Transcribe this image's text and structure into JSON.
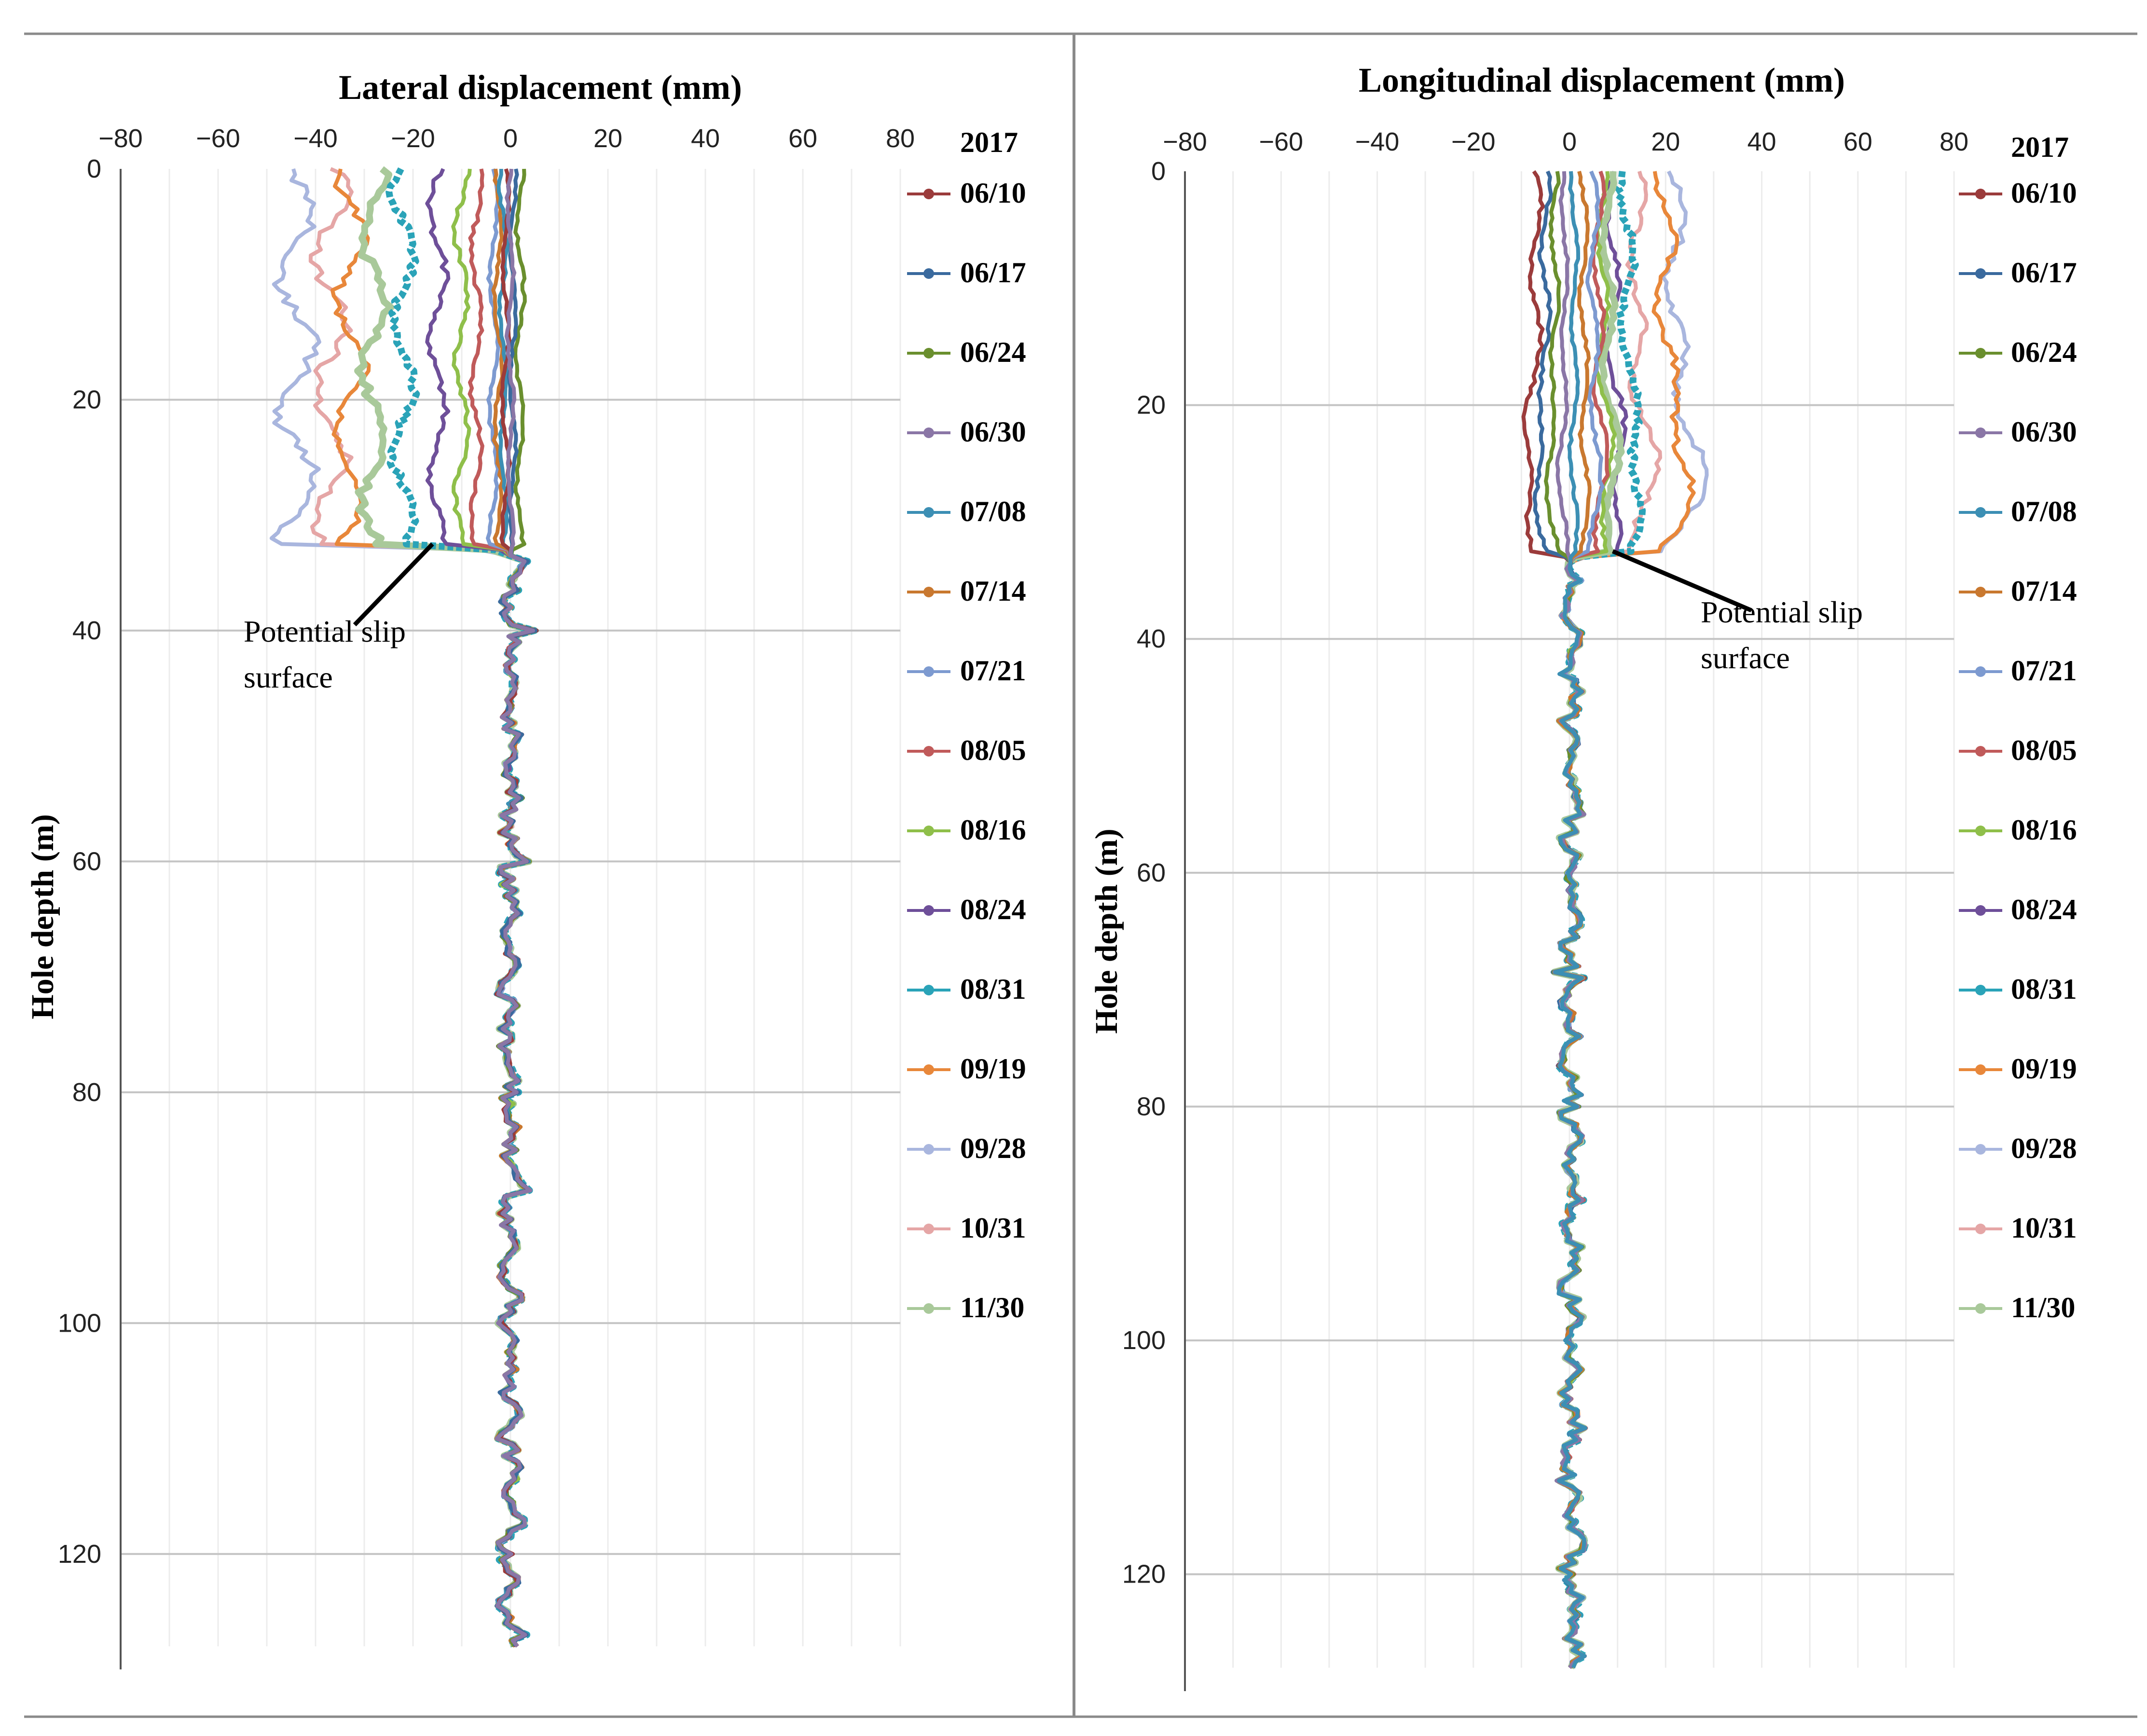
{
  "chart_data": [
    {
      "type": "line",
      "title": "Lateral displacement (mm)",
      "xlabel": "Lateral displacement (mm)",
      "ylabel": "Hole depth (m)",
      "xlim": [
        -80,
        80
      ],
      "ylim": [
        130,
        0
      ],
      "y_inverted": true,
      "x_ticks": [
        -80,
        -60,
        -40,
        -20,
        0,
        20,
        40,
        60,
        80
      ],
      "y_ticks": [
        0,
        20,
        40,
        60,
        80,
        100,
        120
      ],
      "grid": true,
      "legend_position": "right",
      "legend_title": "2017",
      "annotation": {
        "text_line1": "Potential slip",
        "text_line2": "surface",
        "depth_m": 32.5,
        "disp_mm": -16
      },
      "series": [
        {
          "name": "06/10",
          "color": "#9b3b3b",
          "top_disp": -1.0
        },
        {
          "name": "06/17",
          "color": "#3a6a9e",
          "top_disp": 0.5
        },
        {
          "name": "06/24",
          "color": "#6a8f2e",
          "top_disp": 2.0
        },
        {
          "name": "06/30",
          "color": "#8a76a6",
          "top_disp": 0.0
        },
        {
          "name": "07/08",
          "color": "#3c8fb4",
          "top_disp": -1.5
        },
        {
          "name": "07/14",
          "color": "#c9782f",
          "top_disp": -2.5
        },
        {
          "name": "07/21",
          "color": "#7d9ad0",
          "top_disp": -3.5
        },
        {
          "name": "08/05",
          "color": "#c05a5a",
          "top_disp": -7.0
        },
        {
          "name": "08/16",
          "color": "#8fbf4a",
          "top_disp": -10.0
        },
        {
          "name": "08/24",
          "color": "#6e4f99",
          "top_disp": -15.0
        },
        {
          "name": "08/31",
          "color": "#2aa3b8",
          "top_disp": -22.0
        },
        {
          "name": "09/19",
          "color": "#e8873a",
          "top_disp": -33.0
        },
        {
          "name": "09/28",
          "color": "#a9b6de",
          "top_disp": -44.0
        },
        {
          "name": "10/31",
          "color": "#e5a6a6",
          "top_disp": -37.0
        },
        {
          "name": "11/30",
          "color": "#a9c99a",
          "top_disp": -28.0
        }
      ]
    },
    {
      "type": "line",
      "title": "Longitudinal displacement (mm)",
      "xlabel": "Longitudinal displacement (mm)",
      "ylabel": "Hole depth (m)",
      "xlim": [
        -80,
        80
      ],
      "ylim": [
        130,
        0
      ],
      "y_inverted": true,
      "x_ticks": [
        -80,
        -60,
        -40,
        -20,
        0,
        20,
        40,
        60,
        80
      ],
      "y_ticks": [
        0,
        20,
        40,
        60,
        80,
        100,
        120
      ],
      "grid": true,
      "legend_position": "right",
      "legend_title": "2017",
      "annotation": {
        "text_line1": "Potential slip",
        "text_line2": "surface",
        "depth_m": 32.5,
        "disp_mm": 9
      },
      "series": [
        {
          "name": "06/10",
          "color": "#9b3b3b",
          "top_disp": -7.0
        },
        {
          "name": "06/17",
          "color": "#3a6a9e",
          "top_disp": -5.0
        },
        {
          "name": "06/24",
          "color": "#6a8f2e",
          "top_disp": -3.0
        },
        {
          "name": "06/30",
          "color": "#8a76a6",
          "top_disp": -1.0
        },
        {
          "name": "07/08",
          "color": "#3c8fb4",
          "top_disp": 1.0
        },
        {
          "name": "07/14",
          "color": "#c9782f",
          "top_disp": 3.0
        },
        {
          "name": "07/21",
          "color": "#7d9ad0",
          "top_disp": 5.0
        },
        {
          "name": "08/05",
          "color": "#c05a5a",
          "top_disp": 6.0
        },
        {
          "name": "08/16",
          "color": "#8fbf4a",
          "top_disp": 7.0
        },
        {
          "name": "08/24",
          "color": "#6e4f99",
          "top_disp": 9.0
        },
        {
          "name": "08/31",
          "color": "#2aa3b8",
          "top_disp": 12.0
        },
        {
          "name": "09/19",
          "color": "#e8873a",
          "top_disp": 20.0
        },
        {
          "name": "09/28",
          "color": "#a9b6de",
          "top_disp": 22.0
        },
        {
          "name": "10/31",
          "color": "#e5a6a6",
          "top_disp": 14.0
        },
        {
          "name": "11/30",
          "color": "#a9c99a",
          "top_disp": 8.0
        }
      ]
    }
  ]
}
